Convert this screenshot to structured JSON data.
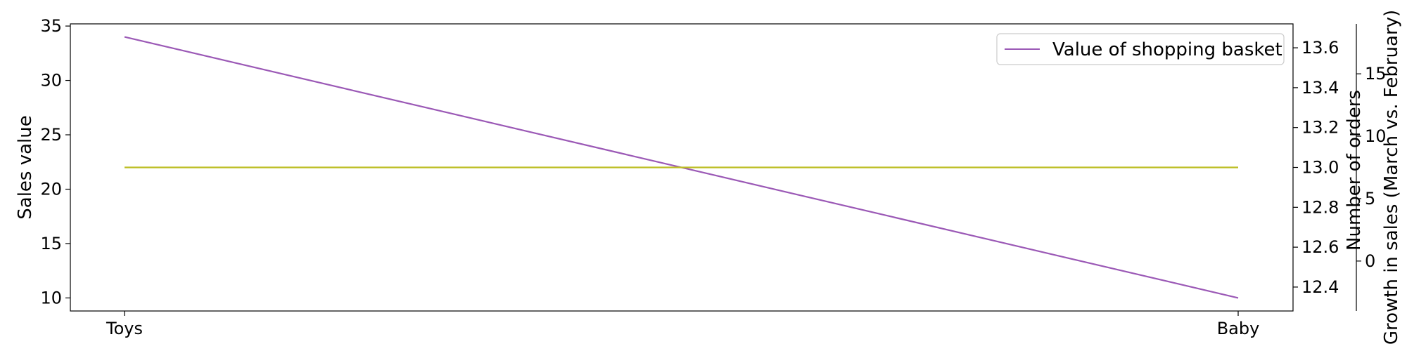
{
  "chart_data": {
    "type": "line",
    "categories": [
      "Toys",
      "Baby"
    ],
    "axes": {
      "y_left": {
        "label": "Sales value",
        "ticks": [
          10,
          15,
          20,
          25,
          30,
          35
        ],
        "range": [
          8.8,
          35.2
        ]
      },
      "y_right_1": {
        "label": "Number of orders",
        "ticks": [
          "12.4",
          "12.6",
          "12.8",
          "13.0",
          "13.2",
          "13.4",
          "13.6"
        ],
        "range": [
          12.28,
          13.72
        ]
      },
      "y_right_2": {
        "label": "Growth in sales (March vs. February)",
        "ticks": [
          0,
          5,
          10,
          15
        ],
        "range": [
          -4,
          19
        ]
      }
    },
    "series": [
      {
        "name": "Value of shopping basket",
        "axis": "y_left",
        "values": [
          34,
          10
        ],
        "color": "#9b59b6"
      },
      {
        "axis": "y_right_1",
        "values": [
          13.0,
          13.0
        ],
        "color": "#bcbd22"
      }
    ],
    "legend": {
      "placement": "top-right",
      "entries": [
        "Value of shopping basket"
      ]
    },
    "grid": false
  }
}
